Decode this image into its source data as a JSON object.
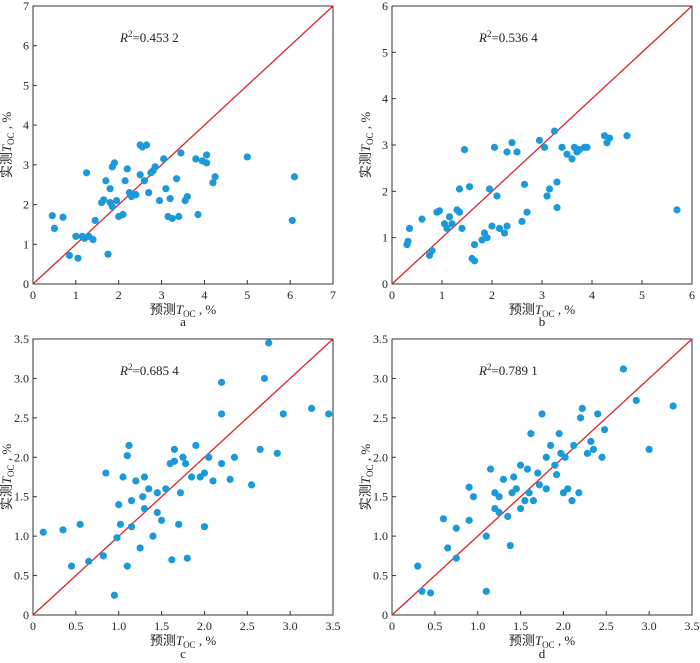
{
  "chart_data": [
    {
      "type": "scatter",
      "panel_label": "a",
      "annotation": {
        "prefix": "R",
        "sup": "2",
        "value": "=0.453 2"
      },
      "xlabel": "预测T OC , %",
      "ylabel": "实测T OC , %",
      "xlim": [
        0,
        7
      ],
      "ylim": [
        0,
        7
      ],
      "xticks": [
        "0",
        "1",
        "2",
        "3",
        "4",
        "5",
        "6",
        "7"
      ],
      "yticks": [
        "0",
        "1",
        "2",
        "3",
        "4",
        "5",
        "6",
        "7"
      ],
      "reference_line": "y = x",
      "points": [
        [
          0.45,
          1.72
        ],
        [
          0.5,
          1.4
        ],
        [
          0.7,
          1.68
        ],
        [
          0.85,
          0.72
        ],
        [
          1.0,
          1.2
        ],
        [
          1.05,
          0.65
        ],
        [
          1.15,
          1.2
        ],
        [
          1.2,
          1.15
        ],
        [
          1.3,
          1.2
        ],
        [
          1.4,
          1.12
        ],
        [
          1.45,
          1.6
        ],
        [
          1.25,
          2.8
        ],
        [
          1.6,
          2.05
        ],
        [
          1.65,
          2.12
        ],
        [
          1.7,
          2.6
        ],
        [
          1.75,
          0.75
        ],
        [
          1.8,
          2.4
        ],
        [
          1.8,
          2.05
        ],
        [
          1.85,
          1.95
        ],
        [
          1.85,
          2.95
        ],
        [
          1.9,
          3.05
        ],
        [
          1.95,
          2.1
        ],
        [
          2.0,
          1.7
        ],
        [
          2.1,
          1.75
        ],
        [
          2.2,
          2.9
        ],
        [
          2.15,
          2.6
        ],
        [
          2.25,
          2.3
        ],
        [
          2.3,
          2.2
        ],
        [
          2.4,
          2.25
        ],
        [
          2.5,
          3.5
        ],
        [
          2.55,
          3.45
        ],
        [
          2.5,
          2.75
        ],
        [
          2.6,
          2.6
        ],
        [
          2.65,
          3.5
        ],
        [
          2.7,
          2.3
        ],
        [
          2.75,
          2.8
        ],
        [
          2.8,
          2.85
        ],
        [
          2.85,
          2.95
        ],
        [
          2.95,
          2.1
        ],
        [
          3.05,
          3.15
        ],
        [
          3.1,
          2.4
        ],
        [
          3.15,
          1.7
        ],
        [
          3.2,
          2.15
        ],
        [
          3.25,
          1.65
        ],
        [
          3.35,
          2.65
        ],
        [
          3.4,
          1.7
        ],
        [
          3.45,
          3.3
        ],
        [
          3.55,
          2.1
        ],
        [
          3.6,
          2.2
        ],
        [
          3.8,
          3.15
        ],
        [
          3.85,
          1.75
        ],
        [
          3.95,
          3.1
        ],
        [
          4.05,
          3.05
        ],
        [
          4.05,
          3.25
        ],
        [
          4.2,
          2.55
        ],
        [
          4.25,
          2.7
        ],
        [
          5.0,
          3.2
        ],
        [
          6.05,
          1.6
        ],
        [
          6.1,
          2.7
        ]
      ]
    },
    {
      "type": "scatter",
      "panel_label": "b",
      "annotation": {
        "prefix": "R",
        "sup": "2",
        "value": "=0.536 4"
      },
      "xlabel": "预测T OC , %",
      "ylabel": "实测T OC , %",
      "xlim": [
        0,
        6
      ],
      "ylim": [
        0,
        6
      ],
      "xticks": [
        "0",
        "1",
        "2",
        "3",
        "4",
        "5",
        "6"
      ],
      "yticks": [
        "0",
        "1",
        "2",
        "3",
        "4",
        "5",
        "6"
      ],
      "reference_line": "y = x",
      "points": [
        [
          0.3,
          0.85
        ],
        [
          0.32,
          0.92
        ],
        [
          0.35,
          1.2
        ],
        [
          0.6,
          1.4
        ],
        [
          0.75,
          0.62
        ],
        [
          0.8,
          0.72
        ],
        [
          0.9,
          1.55
        ],
        [
          0.95,
          1.58
        ],
        [
          1.05,
          1.3
        ],
        [
          1.1,
          1.2
        ],
        [
          1.15,
          1.45
        ],
        [
          1.2,
          1.3
        ],
        [
          1.3,
          1.6
        ],
        [
          1.35,
          1.55
        ],
        [
          1.35,
          2.05
        ],
        [
          1.4,
          1.2
        ],
        [
          1.45,
          2.9
        ],
        [
          1.55,
          2.1
        ],
        [
          1.6,
          0.55
        ],
        [
          1.65,
          0.5
        ],
        [
          1.65,
          0.85
        ],
        [
          1.8,
          0.95
        ],
        [
          1.85,
          1.1
        ],
        [
          1.9,
          1.0
        ],
        [
          1.95,
          2.05
        ],
        [
          2.0,
          1.25
        ],
        [
          2.05,
          2.95
        ],
        [
          2.1,
          1.9
        ],
        [
          2.15,
          1.2
        ],
        [
          2.25,
          1.1
        ],
        [
          2.3,
          2.85
        ],
        [
          2.3,
          1.25
        ],
        [
          2.4,
          3.05
        ],
        [
          2.5,
          2.85
        ],
        [
          2.6,
          1.35
        ],
        [
          2.65,
          2.15
        ],
        [
          2.7,
          1.55
        ],
        [
          2.95,
          3.1
        ],
        [
          3.05,
          2.95
        ],
        [
          3.1,
          1.9
        ],
        [
          3.15,
          2.05
        ],
        [
          3.25,
          3.3
        ],
        [
          3.3,
          2.2
        ],
        [
          3.3,
          1.65
        ],
        [
          3.4,
          2.95
        ],
        [
          3.5,
          2.8
        ],
        [
          3.6,
          2.7
        ],
        [
          3.65,
          2.95
        ],
        [
          3.7,
          2.85
        ],
        [
          3.75,
          2.9
        ],
        [
          3.85,
          2.95
        ],
        [
          3.9,
          2.95
        ],
        [
          4.25,
          3.2
        ],
        [
          4.3,
          3.05
        ],
        [
          4.35,
          3.15
        ],
        [
          4.7,
          3.2
        ],
        [
          5.7,
          1.6
        ]
      ]
    },
    {
      "type": "scatter",
      "panel_label": "c",
      "annotation": {
        "prefix": "R",
        "sup": "2",
        "value": "=0.685 4"
      },
      "xlabel": "预测T OC , %",
      "ylabel": "实测T OC , %",
      "xlim": [
        0,
        3.5
      ],
      "ylim": [
        0,
        3.5
      ],
      "xticks": [
        "0",
        "0.5",
        "1.0",
        "1.5",
        "2.0",
        "2.5",
        "3.0",
        "3.5"
      ],
      "yticks": [
        "0",
        "0.5",
        "1.0",
        "1.5",
        "2.0",
        "2.5",
        "3.0",
        "3.5"
      ],
      "reference_line": "y = x",
      "points": [
        [
          0.12,
          1.05
        ],
        [
          0.35,
          1.08
        ],
        [
          0.45,
          0.62
        ],
        [
          0.55,
          1.15
        ],
        [
          0.65,
          0.68
        ],
        [
          0.82,
          0.75
        ],
        [
          0.85,
          1.8
        ],
        [
          0.95,
          0.25
        ],
        [
          0.98,
          0.98
        ],
        [
          1.0,
          1.4
        ],
        [
          1.02,
          1.15
        ],
        [
          1.05,
          1.75
        ],
        [
          1.1,
          2.02
        ],
        [
          1.1,
          0.62
        ],
        [
          1.12,
          2.15
        ],
        [
          1.15,
          1.45
        ],
        [
          1.15,
          1.12
        ],
        [
          1.2,
          1.7
        ],
        [
          1.25,
          0.85
        ],
        [
          1.28,
          1.5
        ],
        [
          1.3,
          1.75
        ],
        [
          1.3,
          1.35
        ],
        [
          1.35,
          1.6
        ],
        [
          1.4,
          1.0
        ],
        [
          1.45,
          1.3
        ],
        [
          1.45,
          1.55
        ],
        [
          1.5,
          1.2
        ],
        [
          1.55,
          1.6
        ],
        [
          1.6,
          1.92
        ],
        [
          1.62,
          0.7
        ],
        [
          1.65,
          1.95
        ],
        [
          1.65,
          2.1
        ],
        [
          1.7,
          1.15
        ],
        [
          1.72,
          1.55
        ],
        [
          1.75,
          2.0
        ],
        [
          1.78,
          1.92
        ],
        [
          1.8,
          0.72
        ],
        [
          1.85,
          1.75
        ],
        [
          1.9,
          2.15
        ],
        [
          1.95,
          1.75
        ],
        [
          2.0,
          1.12
        ],
        [
          2.0,
          1.8
        ],
        [
          2.05,
          2.0
        ],
        [
          2.1,
          1.7
        ],
        [
          2.2,
          2.55
        ],
        [
          2.2,
          2.95
        ],
        [
          2.2,
          1.92
        ],
        [
          2.3,
          1.72
        ],
        [
          2.35,
          2.0
        ],
        [
          2.55,
          1.65
        ],
        [
          2.65,
          2.1
        ],
        [
          2.7,
          3.0
        ],
        [
          2.75,
          3.45
        ],
        [
          2.85,
          2.05
        ],
        [
          2.92,
          2.55
        ],
        [
          3.25,
          2.62
        ],
        [
          3.45,
          2.55
        ]
      ]
    },
    {
      "type": "scatter",
      "panel_label": "d",
      "annotation": {
        "prefix": "R",
        "sup": "2",
        "value": "=0.789 1"
      },
      "xlabel": "预测T OC , %",
      "ylabel": "实测T OC , %",
      "xlim": [
        0,
        3.5
      ],
      "ylim": [
        0,
        3.5
      ],
      "xticks": [
        "0",
        "0.5",
        "1.0",
        "1.5",
        "2.0",
        "2.5",
        "3.0",
        "3.5"
      ],
      "yticks": [
        "0",
        "0.5",
        "1.0",
        "1.5",
        "2.0",
        "2.5",
        "3.0",
        "3.5"
      ],
      "reference_line": "y = x",
      "points": [
        [
          0.3,
          0.62
        ],
        [
          0.35,
          0.3
        ],
        [
          0.45,
          0.28
        ],
        [
          0.6,
          1.22
        ],
        [
          0.65,
          0.85
        ],
        [
          0.75,
          0.72
        ],
        [
          0.75,
          1.1
        ],
        [
          0.9,
          1.2
        ],
        [
          0.9,
          1.62
        ],
        [
          0.95,
          1.5
        ],
        [
          1.1,
          1.0
        ],
        [
          1.1,
          0.3
        ],
        [
          1.15,
          1.85
        ],
        [
          1.2,
          1.55
        ],
        [
          1.2,
          1.35
        ],
        [
          1.25,
          1.5
        ],
        [
          1.25,
          1.3
        ],
        [
          1.3,
          1.72
        ],
        [
          1.35,
          1.25
        ],
        [
          1.38,
          0.88
        ],
        [
          1.4,
          1.55
        ],
        [
          1.42,
          1.75
        ],
        [
          1.45,
          1.6
        ],
        [
          1.5,
          1.9
        ],
        [
          1.5,
          1.35
        ],
        [
          1.55,
          1.45
        ],
        [
          1.58,
          1.85
        ],
        [
          1.6,
          1.55
        ],
        [
          1.62,
          2.3
        ],
        [
          1.65,
          1.45
        ],
        [
          1.7,
          1.8
        ],
        [
          1.72,
          1.65
        ],
        [
          1.75,
          2.55
        ],
        [
          1.8,
          2.0
        ],
        [
          1.8,
          1.6
        ],
        [
          1.85,
          2.15
        ],
        [
          1.9,
          1.9
        ],
        [
          1.92,
          1.78
        ],
        [
          1.95,
          2.3
        ],
        [
          1.97,
          2.05
        ],
        [
          2.0,
          1.55
        ],
        [
          2.02,
          2.0
        ],
        [
          2.05,
          1.6
        ],
        [
          2.1,
          1.45
        ],
        [
          2.12,
          2.15
        ],
        [
          2.18,
          1.55
        ],
        [
          2.2,
          2.5
        ],
        [
          2.22,
          2.62
        ],
        [
          2.28,
          2.05
        ],
        [
          2.32,
          2.2
        ],
        [
          2.35,
          2.1
        ],
        [
          2.4,
          2.55
        ],
        [
          2.45,
          2.0
        ],
        [
          2.48,
          2.35
        ],
        [
          2.7,
          3.12
        ],
        [
          2.85,
          2.72
        ],
        [
          3.0,
          2.1
        ],
        [
          3.28,
          2.65
        ]
      ]
    }
  ]
}
